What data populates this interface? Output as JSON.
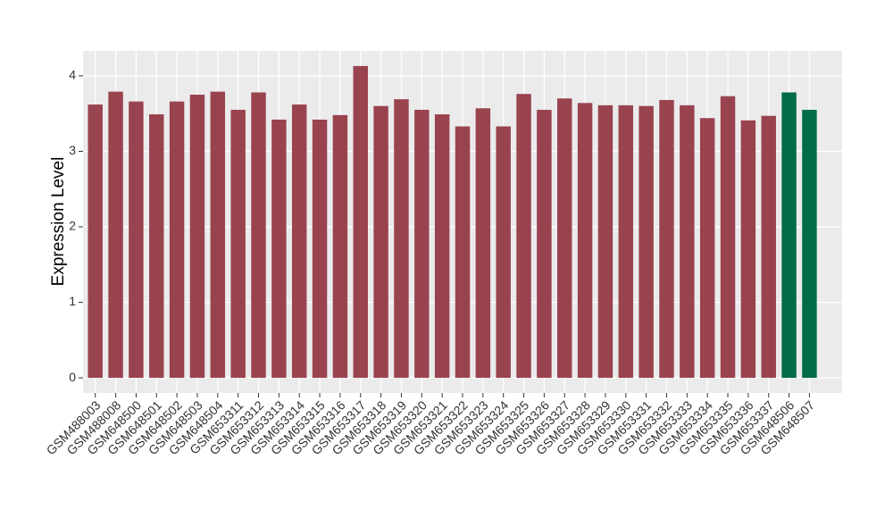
{
  "chart_data": {
    "type": "bar",
    "y_label": "Expression Level",
    "categories": [
      "GSM488003",
      "GSM488008",
      "GSM648500",
      "GSM648501",
      "GSM648502",
      "GSM648503",
      "GSM648504",
      "GSM653311",
      "GSM653312",
      "GSM653313",
      "GSM653314",
      "GSM653315",
      "GSM653316",
      "GSM653317",
      "GSM653318",
      "GSM653319",
      "GSM653320",
      "GSM653321",
      "GSM653322",
      "GSM653323",
      "GSM653324",
      "GSM653325",
      "GSM653326",
      "GSM653327",
      "GSM653328",
      "GSM653329",
      "GSM653330",
      "GSM653331",
      "GSM653332",
      "GSM653333",
      "GSM653334",
      "GSM653335",
      "GSM653336",
      "GSM653337",
      "GSM648506",
      "GSM648507"
    ],
    "values": [
      3.62,
      3.79,
      3.66,
      3.49,
      3.66,
      3.75,
      3.79,
      3.55,
      3.78,
      3.42,
      3.62,
      3.42,
      3.48,
      4.13,
      3.6,
      3.69,
      3.55,
      3.49,
      3.33,
      3.57,
      3.33,
      3.76,
      3.55,
      3.7,
      3.64,
      3.61,
      3.61,
      3.6,
      3.68,
      3.61,
      3.44,
      3.73,
      3.41,
      3.47,
      3.78,
      3.55
    ],
    "colors": [
      "#99434f",
      "#99434f",
      "#99434f",
      "#99434f",
      "#99434f",
      "#99434f",
      "#99434f",
      "#99434f",
      "#99434f",
      "#99434f",
      "#99434f",
      "#99434f",
      "#99434f",
      "#99434f",
      "#99434f",
      "#99434f",
      "#99434f",
      "#99434f",
      "#99434f",
      "#99434f",
      "#99434f",
      "#99434f",
      "#99434f",
      "#99434f",
      "#99434f",
      "#99434f",
      "#99434f",
      "#99434f",
      "#99434f",
      "#99434f",
      "#99434f",
      "#99434f",
      "#99434f",
      "#99434f",
      "#006b45",
      "#006b45"
    ],
    "ylim": [
      -0.2,
      4.33
    ],
    "yticks": [
      0,
      1,
      2,
      3,
      4
    ],
    "grid": true
  }
}
